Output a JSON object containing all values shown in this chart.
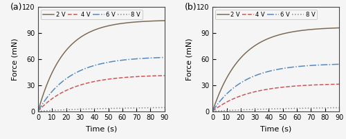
{
  "panel_a": {
    "label": "(a)",
    "curves": [
      {
        "volt": "2 V",
        "color": "#7a6a55",
        "linestyle": "solid",
        "final": 105,
        "k": 0.055
      },
      {
        "volt": "4 V",
        "color": "#cc5555",
        "linestyle": "dashed",
        "final": 42,
        "k": 0.042
      },
      {
        "volt": "6 V",
        "color": "#5588bb",
        "linestyle": "dashdot",
        "final": 63,
        "k": 0.045
      },
      {
        "volt": "8 V",
        "color": "#888888",
        "linestyle": "dotted",
        "final": 5,
        "k": 0.02
      }
    ]
  },
  "panel_b": {
    "label": "(b)",
    "curves": [
      {
        "volt": "2 V",
        "color": "#7a6a55",
        "linestyle": "solid",
        "final": 97,
        "k": 0.05
      },
      {
        "volt": "4 V",
        "color": "#cc5555",
        "linestyle": "dashed",
        "final": 32,
        "k": 0.04
      },
      {
        "volt": "6 V",
        "color": "#5588bb",
        "linestyle": "dashdot",
        "final": 55,
        "k": 0.045
      },
      {
        "volt": "8 V",
        "color": "#888888",
        "linestyle": "dotted",
        "final": 5,
        "k": 0.018
      }
    ]
  },
  "xlim": [
    0,
    90
  ],
  "ylim": [
    0,
    120
  ],
  "xticks": [
    0,
    10,
    20,
    30,
    40,
    50,
    60,
    70,
    80,
    90
  ],
  "yticks": [
    0,
    30,
    60,
    90,
    120
  ],
  "xlabel": "Time (s)",
  "ylabel": "Force (mN)",
  "legend_labels": [
    "2 V",
    "4 V",
    "6 V",
    "8 V"
  ],
  "legend_colors": [
    "#7a6a55",
    "#cc5555",
    "#5588bb",
    "#888888"
  ],
  "legend_linestyles": [
    "solid",
    "dashed",
    "dashdot",
    "dotted"
  ],
  "linewidth": 1.1,
  "bg_color": "#f5f5f5"
}
